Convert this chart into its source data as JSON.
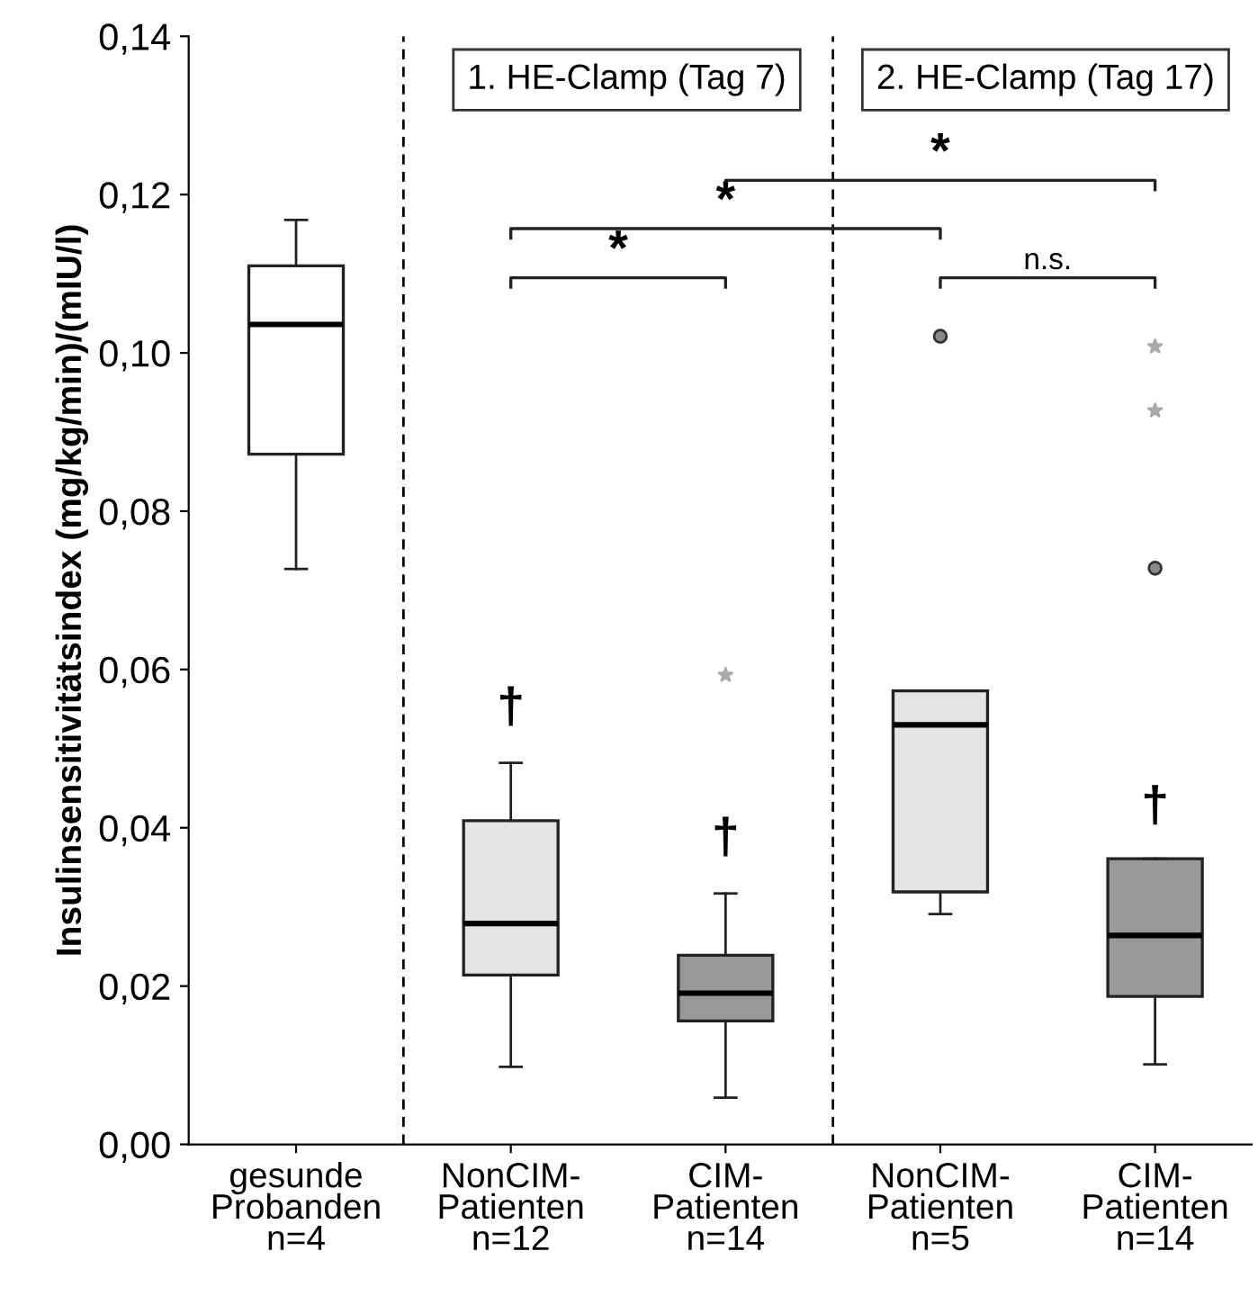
{
  "chart_data": {
    "type": "box",
    "ylabel": "Insulinsensitivitätsindex (mg/kg/min)/(mIU/l)",
    "categories": [
      "gesunde\nProbanden\nn=4",
      "NonCIM-\nPatienten\nn=12",
      "CIM-\nPatienten\nn=14",
      "NonCIM-\nPatienten\nn=5",
      "CIM-\nPatienten\nn=14"
    ],
    "colors": [
      "#ffffff",
      "#e4e4e4",
      "#999999",
      "#e4e4e4",
      "#999999"
    ],
    "boxes": [
      {
        "low": 0.0727,
        "q1": 0.0872,
        "median": 0.1036,
        "q3": 0.111,
        "high": 0.1168
      },
      {
        "low": 0.0098,
        "q1": 0.0214,
        "median": 0.0279,
        "q3": 0.0409,
        "high": 0.0482
      },
      {
        "low": 0.0059,
        "q1": 0.0156,
        "median": 0.0191,
        "q3": 0.0239,
        "high": 0.0317
      },
      {
        "low": 0.0291,
        "q1": 0.0319,
        "median": 0.053,
        "q3": 0.0573,
        "high": 0.0573,
        "outliers": [
          0.1021
        ]
      },
      {
        "low": 0.0101,
        "q1": 0.0187,
        "median": 0.0264,
        "q3": 0.0361,
        "high": 0.0361,
        "outliers": [
          0.0728
        ]
      }
    ],
    "series": [
      {
        "type": "scatter",
        "marker": "star",
        "color": "#aaaaaa",
        "values": [
          null,
          null,
          0.0593,
          null,
          0.1008
        ]
      },
      {
        "type": "scatter",
        "marker": "star",
        "color": "#aaaaaa",
        "values": [
          null,
          null,
          null,
          null,
          0.0927
        ]
      }
    ],
    "ylim": [
      0,
      0.14
    ],
    "yticks": [
      {
        "value": 0,
        "label": "0,00"
      },
      {
        "value": 0.02,
        "label": "0,02"
      },
      {
        "value": 0.04,
        "label": "0,04"
      },
      {
        "value": 0.06,
        "label": "0,06"
      },
      {
        "value": 0.08,
        "label": "0,08"
      },
      {
        "value": 0.1,
        "label": "0,10"
      },
      {
        "value": 0.12,
        "label": "0,12"
      },
      {
        "value": 0.14,
        "label": "0,14"
      }
    ],
    "annotations": [
      "1. HE-Clamp (Tag 7)",
      "2. HE-Clamp (Tag 17)",
      "*",
      "*",
      "*",
      "n.s.",
      "†",
      "†",
      "†"
    ],
    "grid": false,
    "legend": false
  }
}
